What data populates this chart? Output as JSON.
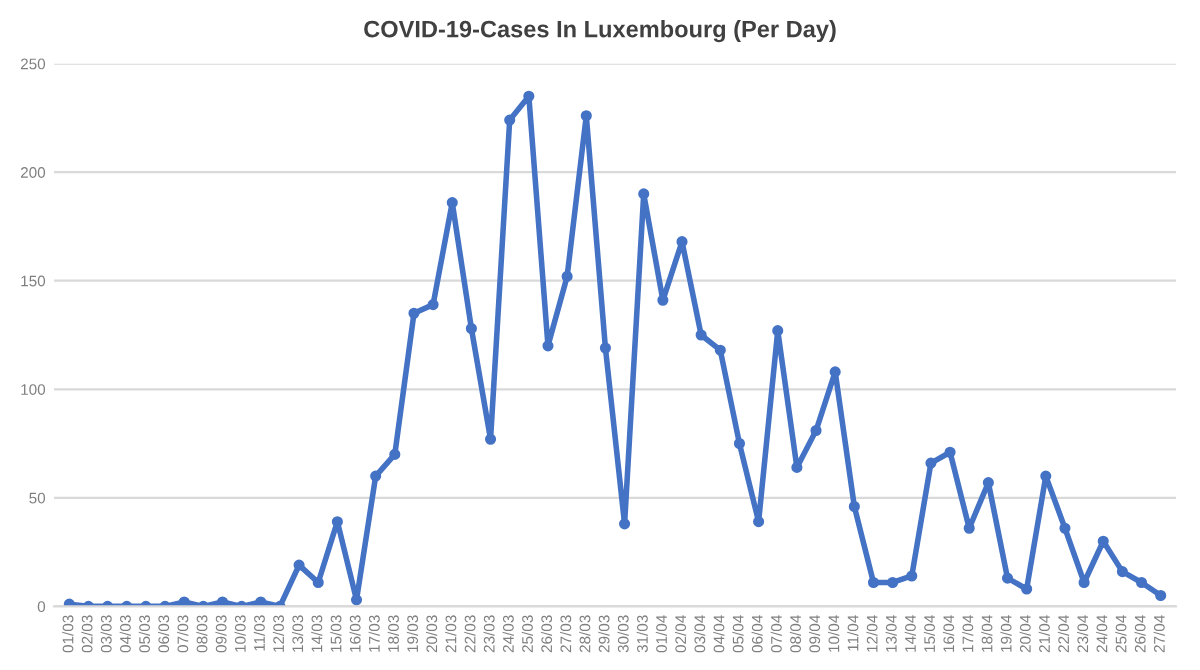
{
  "chart_data": {
    "type": "line",
    "title": "COVID-19-Cases In Luxembourg (Per Day)",
    "categories": [
      "01/03",
      "02/03",
      "03/03",
      "04/03",
      "05/03",
      "06/03",
      "07/03",
      "08/03",
      "09/03",
      "10/03",
      "11/03",
      "12/03",
      "13/03",
      "14/03",
      "15/03",
      "16/03",
      "17/03",
      "18/03",
      "19/03",
      "20/03",
      "21/03",
      "22/03",
      "23/03",
      "24/03",
      "25/03",
      "26/03",
      "27/03",
      "28/03",
      "29/03",
      "30/03",
      "31/03",
      "01/04",
      "02/04",
      "03/04",
      "04/04",
      "05/04",
      "06/04",
      "07/04",
      "08/04",
      "09/04",
      "10/04",
      "11/04",
      "12/04",
      "13/04",
      "14/04",
      "15/04",
      "16/04",
      "17/04",
      "18/04",
      "19/04",
      "20/04",
      "21/04",
      "22/04",
      "23/04",
      "24/04",
      "25/04",
      "26/04",
      "27/04"
    ],
    "series": [
      {
        "color": "#4472c4",
        "values": [
          1,
          0,
          0,
          0,
          0,
          0,
          2,
          0,
          2,
          0,
          2,
          0,
          19,
          11,
          39,
          3,
          60,
          70,
          135,
          139,
          186,
          128,
          77,
          224,
          235,
          120,
          152,
          226,
          119,
          38,
          190,
          141,
          168,
          125,
          118,
          75,
          39,
          127,
          64,
          81,
          108,
          46,
          11,
          11,
          14,
          66,
          71,
          36,
          57,
          13,
          8,
          60,
          36,
          11,
          30,
          16,
          11,
          5
        ]
      }
    ],
    "ylim": [
      0,
      250
    ],
    "yticks": [
      0,
      50,
      100,
      150,
      200,
      250
    ],
    "grid": "y",
    "marker": "circle",
    "line_style": "solid",
    "legend": false
  }
}
